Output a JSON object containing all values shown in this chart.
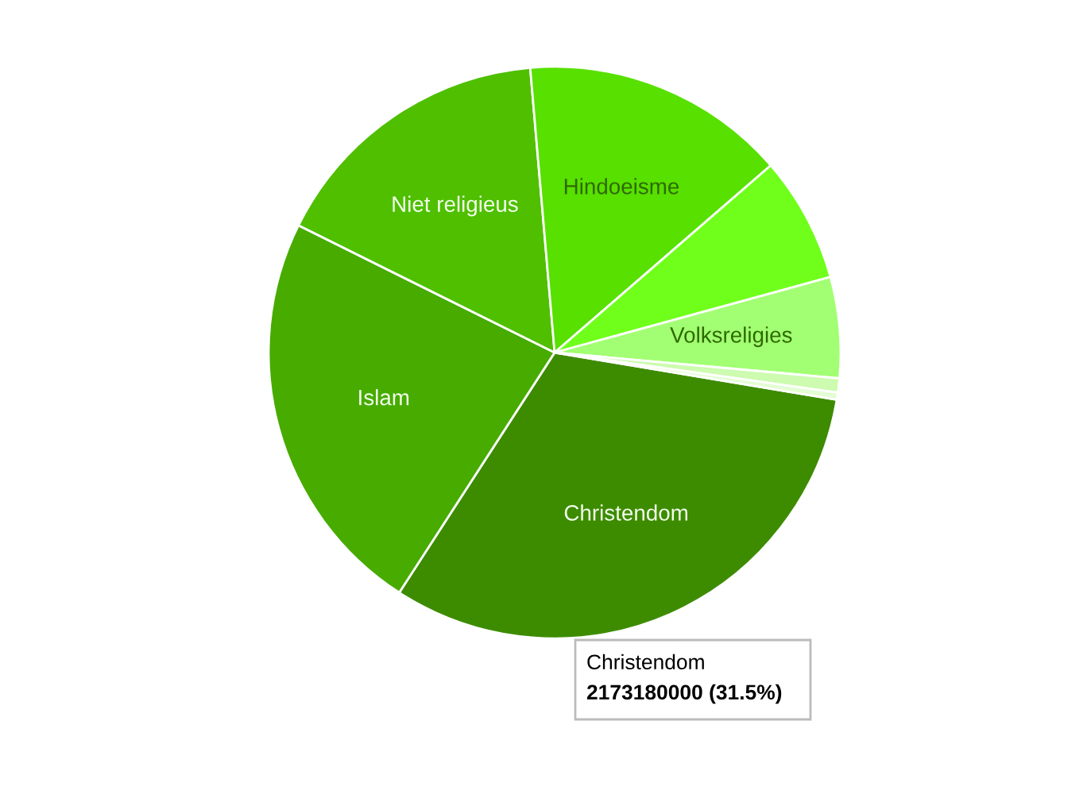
{
  "chart_data": {
    "type": "pie",
    "categories": [
      "Christendom",
      "Islam",
      "Niet religieus",
      "Hindoeisme",
      null,
      "Volksreligies",
      null,
      null
    ],
    "values": [
      31.5,
      23.2,
      16.3,
      15.0,
      7.1,
      5.7,
      0.8,
      0.4
    ],
    "colors": [
      "#3d8c00",
      "#47ab00",
      "#4fbf00",
      "#57e000",
      "#70ff1a",
      "#a2ff73",
      "#cdfbb0",
      "#e4fdd4"
    ],
    "annotations": [
      "Christendom",
      "2173180000 (31.5%)"
    ],
    "legend": false
  }
}
